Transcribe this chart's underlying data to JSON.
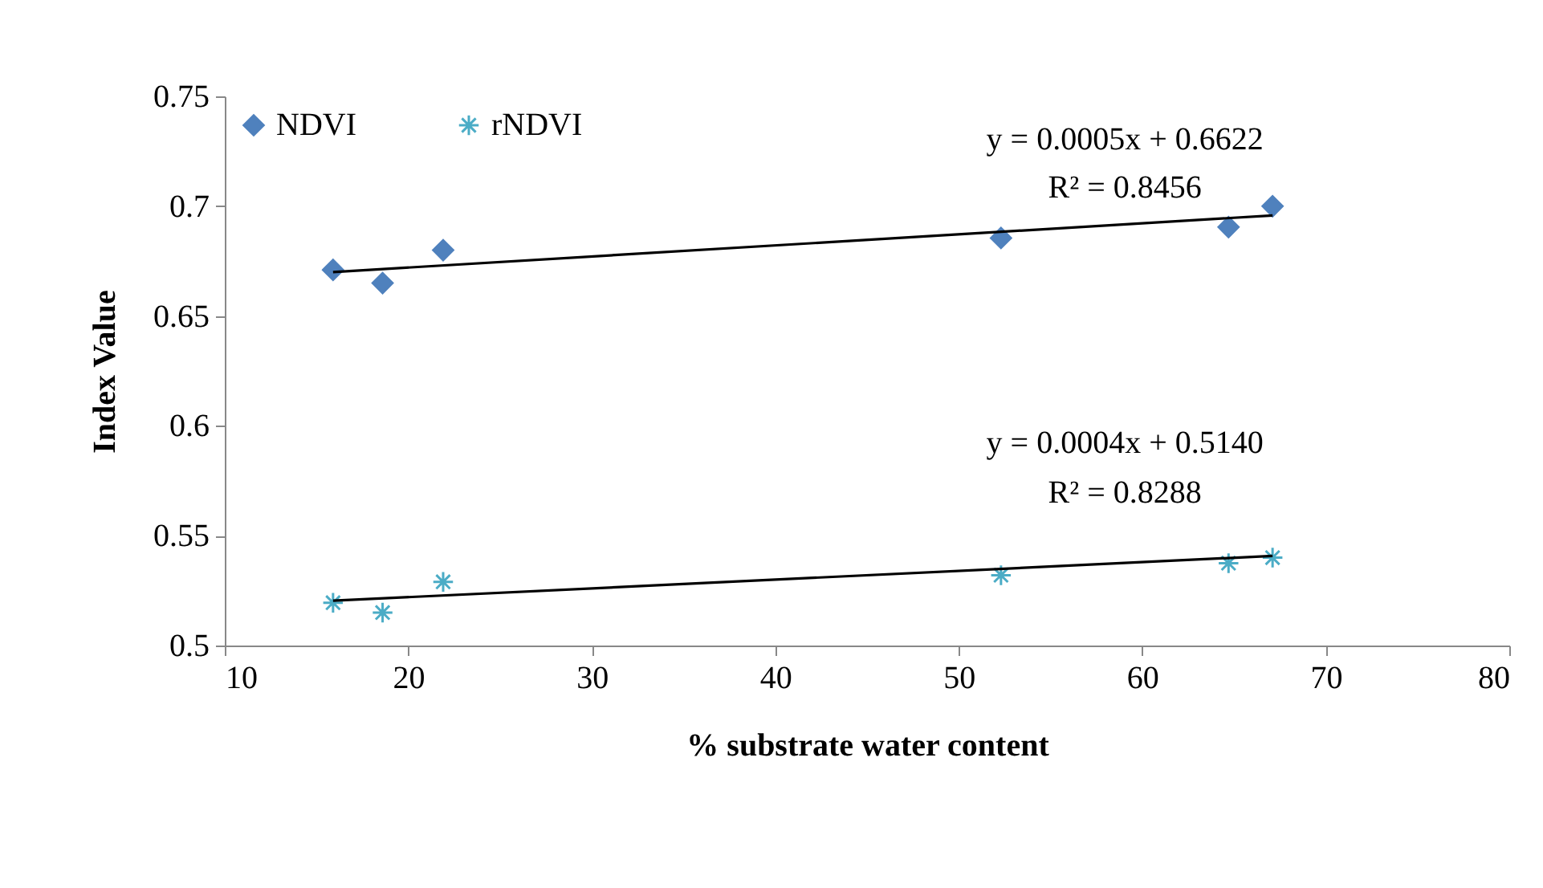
{
  "chart_data": {
    "type": "scatter",
    "xlabel": "% substrate water content",
    "ylabel": "Index Value",
    "xlim": [
      10,
      80
    ],
    "xticks": [
      10,
      20,
      30,
      40,
      50,
      60,
      70,
      80
    ],
    "ylim": [
      0.5,
      0.75
    ],
    "yticks": [
      0.5,
      0.55,
      0.6,
      0.65,
      0.7,
      0.75
    ],
    "grid": false,
    "legend": "top left",
    "series": [
      {
        "name": "NDVI",
        "color": "#4f81bd",
        "marker": "diamond",
        "x": [
          15.9,
          18.6,
          21.9,
          52.3,
          64.7,
          67.1
        ],
        "values": [
          0.671,
          0.665,
          0.68,
          0.6855,
          0.6905,
          0.7
        ]
      },
      {
        "name": "rNDVI",
        "color": "#4bacc6",
        "marker": "cross",
        "x": [
          15.9,
          18.6,
          21.9,
          52.3,
          64.7,
          67.1
        ],
        "values": [
          0.5195,
          0.515,
          0.529,
          0.532,
          0.5375,
          0.54
        ]
      },
      {
        "type": "line",
        "color": "#000000",
        "x": [
          15.9,
          67.1
        ],
        "values": [
          0.67,
          0.6958
        ]
      },
      {
        "type": "line",
        "color": "#000000",
        "x": [
          15.9,
          67.1
        ],
        "values": [
          0.5204,
          0.5408
        ]
      }
    ],
    "annotations": [
      "y = 0.0005x + 0.6622",
      "R² = 0.8456",
      "y = 0.0004x + 0.5140",
      "R² = 0.8288"
    ]
  }
}
